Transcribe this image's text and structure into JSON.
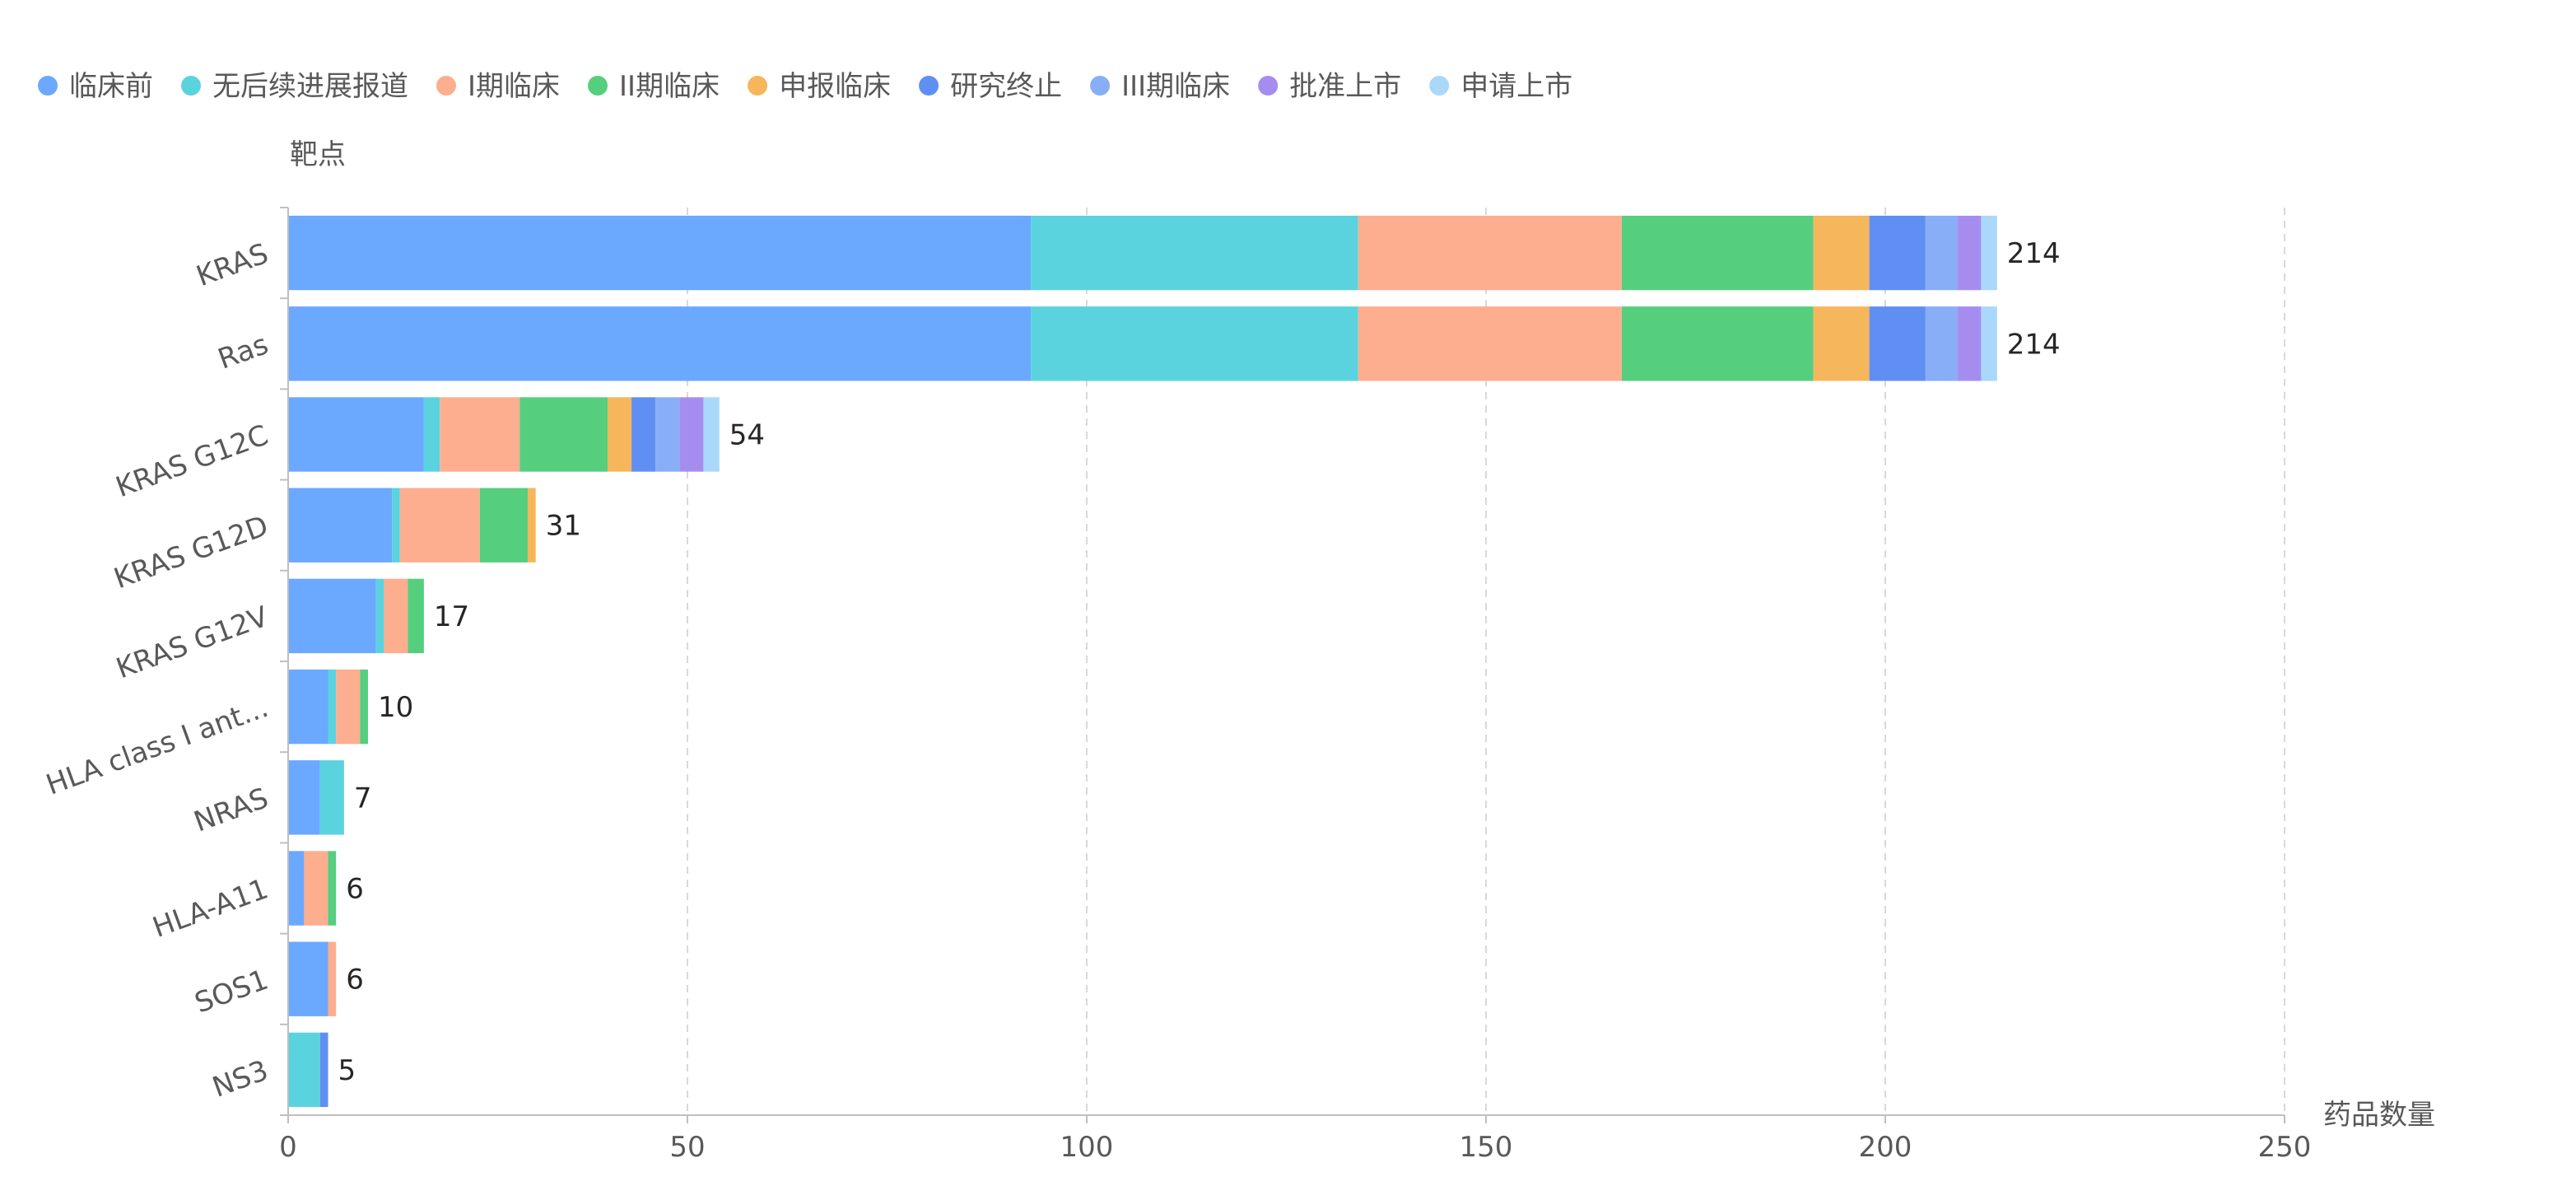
{
  "chart_data": {
    "type": "bar",
    "orientation": "horizontal",
    "stacked": true,
    "ylabel": "靶点",
    "xlabel": "药品数量",
    "xlim": [
      0,
      250
    ],
    "xticks": [
      0,
      50,
      100,
      150,
      200,
      250
    ],
    "grid": "vertical-dashed",
    "legend_position": "top-left",
    "categories": [
      "KRAS",
      "Ras",
      "KRAS G12C",
      "KRAS G12D",
      "KRAS G12V",
      "HLA class I ant...",
      "NRAS",
      "HLA-A11",
      "SOS1",
      "NS3"
    ],
    "totals": [
      214,
      214,
      54,
      31,
      17,
      10,
      7,
      6,
      6,
      5
    ],
    "series": [
      {
        "name": "临床前",
        "color": "#6BA8FF",
        "values": [
          93,
          93,
          17,
          13,
          11,
          5,
          4,
          2,
          5,
          0
        ]
      },
      {
        "name": "无后续进展报道",
        "color": "#5AD3DE",
        "values": [
          41,
          41,
          2,
          1,
          1,
          1,
          3,
          0,
          0,
          4
        ]
      },
      {
        "name": "I期临床",
        "color": "#FDAE8E",
        "values": [
          33,
          33,
          10,
          10,
          3,
          3,
          0,
          3,
          1,
          0
        ]
      },
      {
        "name": "II期临床",
        "color": "#55CF7E",
        "values": [
          24,
          24,
          11,
          6,
          2,
          1,
          0,
          1,
          0,
          0
        ]
      },
      {
        "name": "申报临床",
        "color": "#F6B65B",
        "values": [
          7,
          7,
          3,
          1,
          0,
          0,
          0,
          0,
          0,
          0
        ]
      },
      {
        "name": "研究终止",
        "color": "#5F8FF2",
        "values": [
          7,
          7,
          3,
          0,
          0,
          0,
          0,
          0,
          0,
          1
        ]
      },
      {
        "name": "III期临床",
        "color": "#87AEF7",
        "values": [
          4,
          4,
          3,
          0,
          0,
          0,
          0,
          0,
          0,
          0
        ]
      },
      {
        "name": "批准上市",
        "color": "#A58DF0",
        "values": [
          3,
          3,
          3,
          0,
          0,
          0,
          0,
          0,
          0,
          0
        ]
      },
      {
        "name": "申请上市",
        "color": "#A9D8FB",
        "values": [
          2,
          2,
          2,
          0,
          0,
          0,
          0,
          0,
          0,
          0
        ]
      }
    ]
  }
}
